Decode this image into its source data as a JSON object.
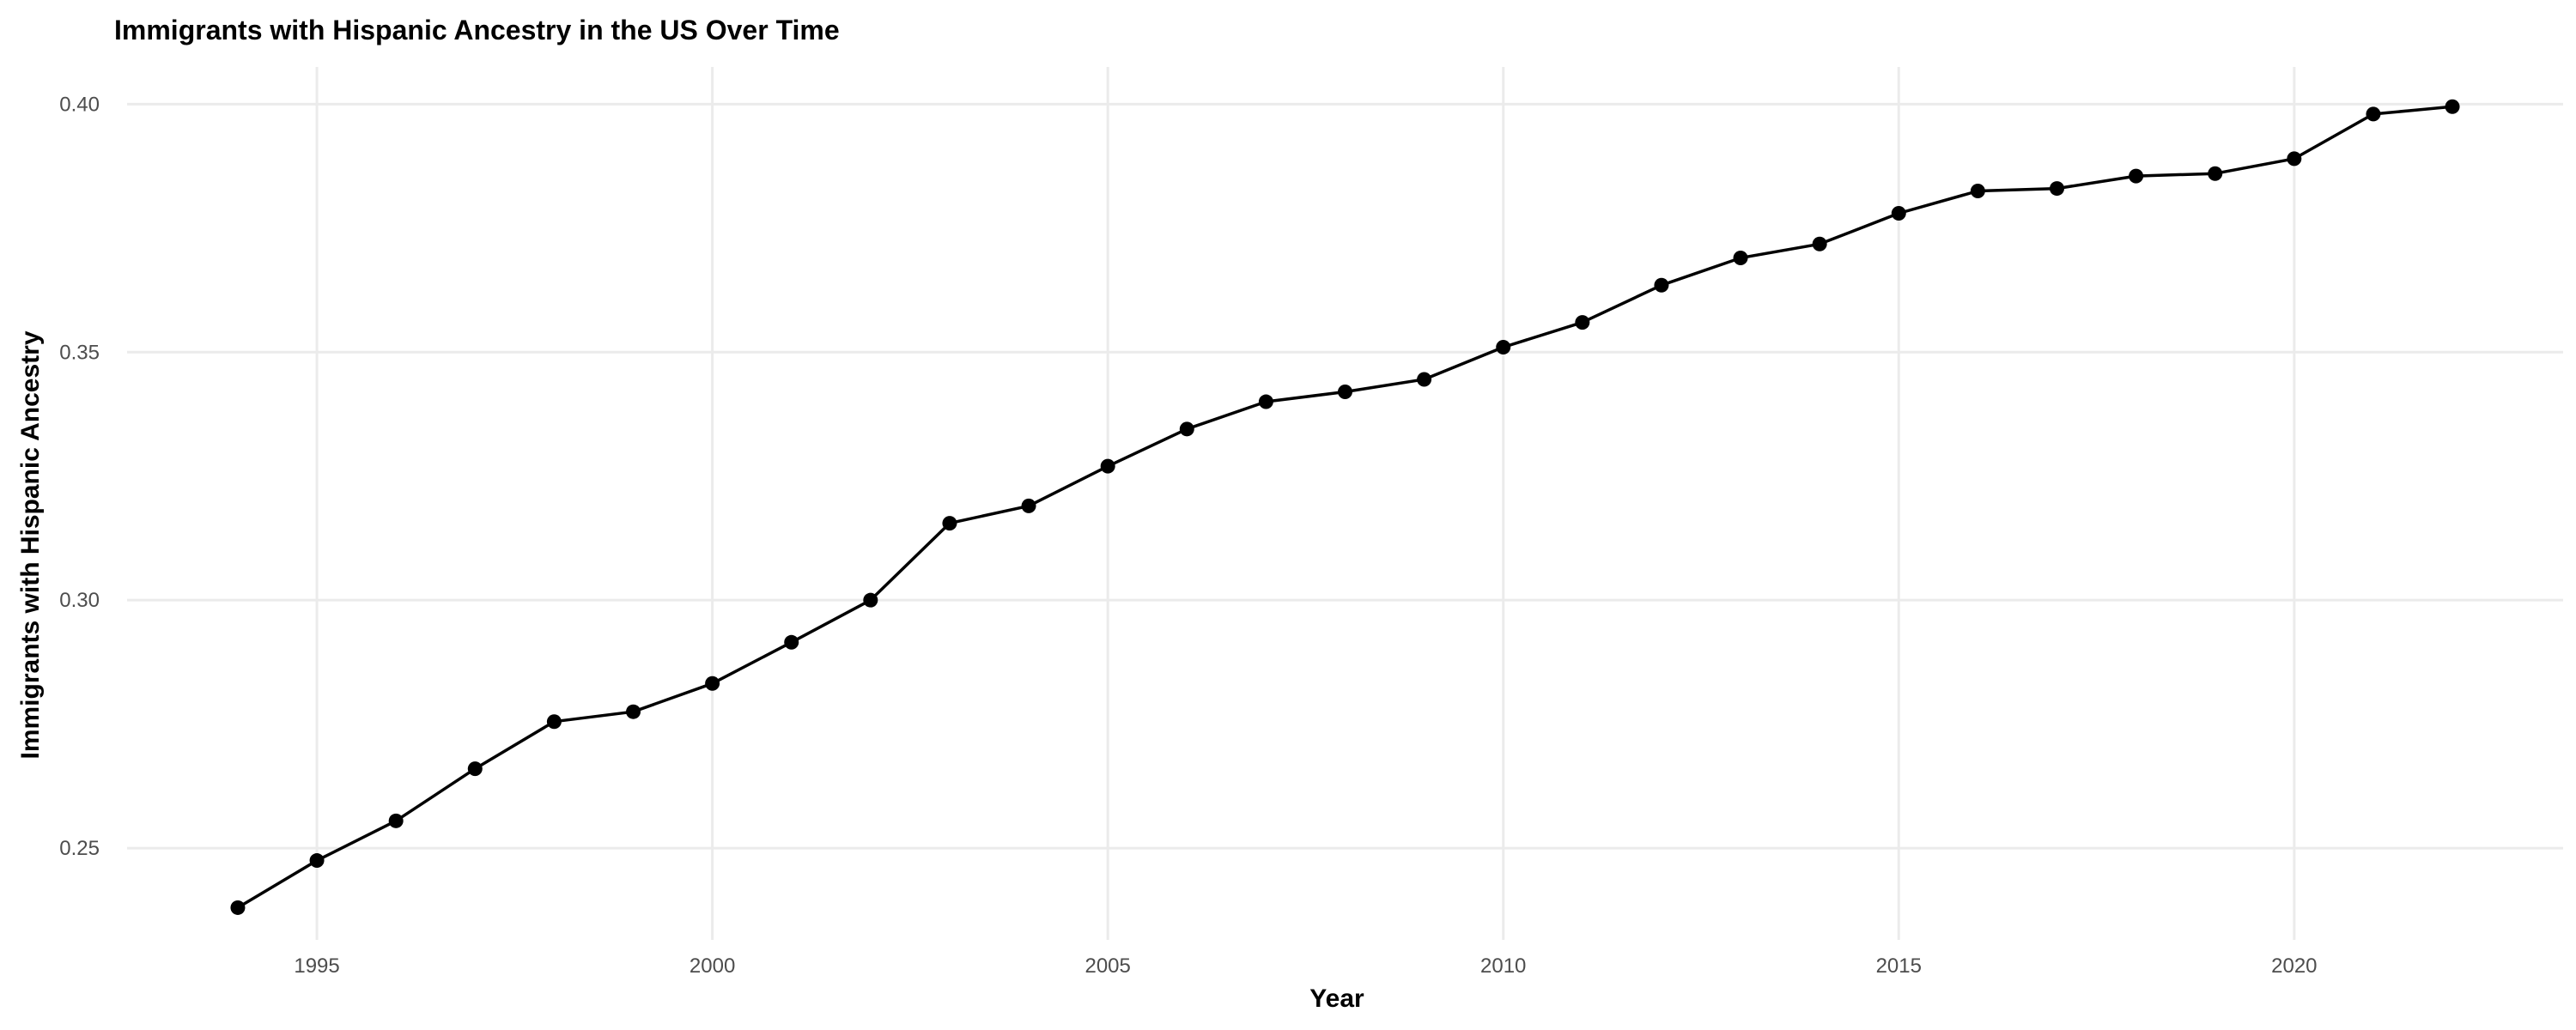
{
  "chart_data": {
    "type": "line",
    "title": "Immigrants with Hispanic Ancestry in the US Over Time",
    "xlabel": "Year",
    "ylabel": "Immigrants with Hispanic Ancestry",
    "xlim": [
      1992.6,
      2023.4
    ],
    "ylim": [
      0.2315,
      0.4075
    ],
    "x_ticks": [
      1995,
      2000,
      2005,
      2010,
      2015,
      2020
    ],
    "y_ticks": [
      0.25,
      0.3,
      0.35,
      0.4
    ],
    "y_tick_labels": [
      "0.25",
      "0.30",
      "0.35",
      "0.40"
    ],
    "grid": true,
    "legend": "none",
    "series_color": "#000000",
    "x": [
      1994,
      1995,
      1996,
      1997,
      1998,
      1999,
      2000,
      2001,
      2002,
      2003,
      2004,
      2005,
      2006,
      2007,
      2008,
      2009,
      2010,
      2011,
      2012,
      2013,
      2014,
      2015,
      2016,
      2017,
      2018,
      2019,
      2020,
      2021,
      2022
    ],
    "values": [
      0.238,
      0.2475,
      0.2555,
      0.266,
      0.2755,
      0.2775,
      0.2832,
      0.2915,
      0.3,
      0.3155,
      0.319,
      0.327,
      0.3345,
      0.34,
      0.342,
      0.3445,
      0.351,
      0.356,
      0.3635,
      0.369,
      0.3718,
      0.378,
      0.3825,
      0.383,
      0.3855,
      0.386,
      0.389,
      0.398,
      0.3995
    ]
  }
}
